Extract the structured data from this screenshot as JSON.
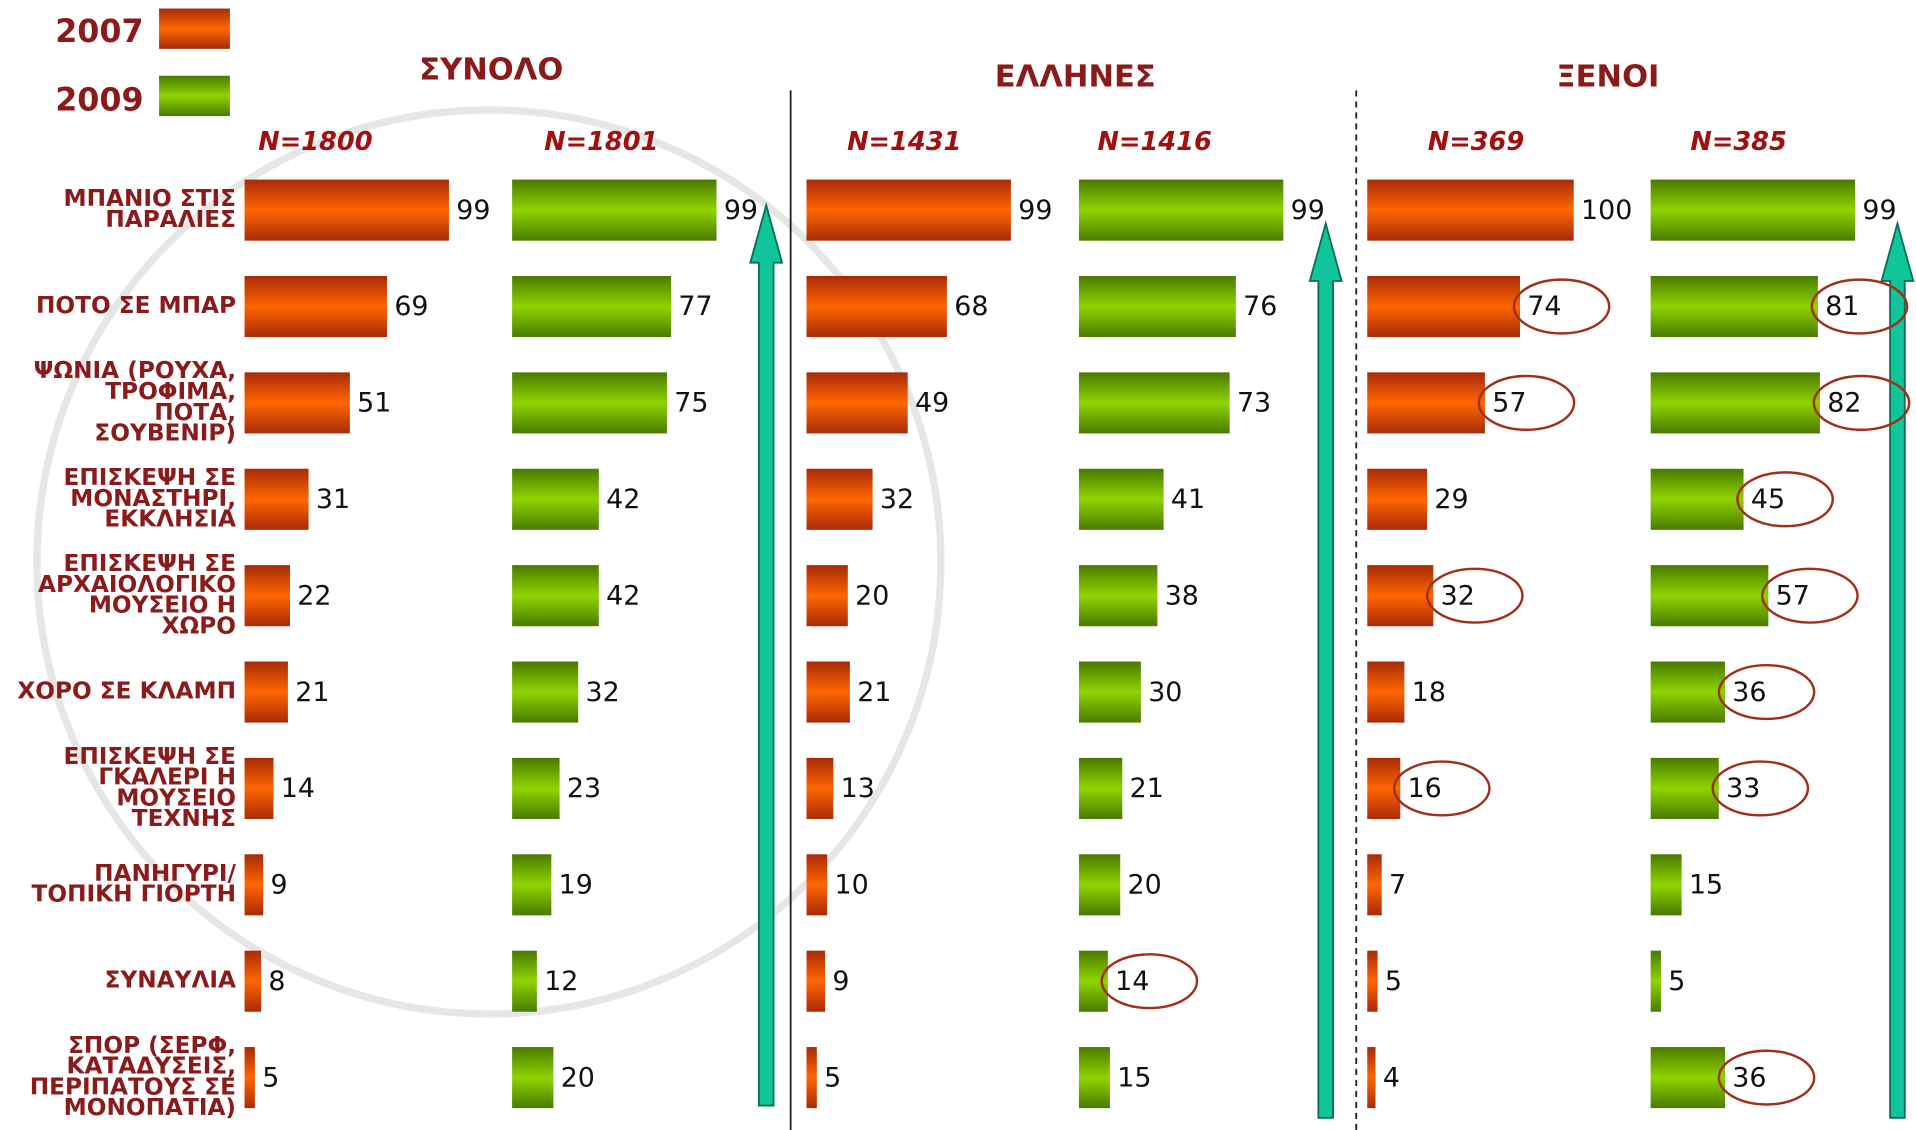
{
  "chart_data": {
    "type": "bar",
    "orientation": "horizontal",
    "series": [
      {
        "name": "2007",
        "color": "#ff6600"
      },
      {
        "name": "2009",
        "color": "#8fd400"
      }
    ],
    "categories": [
      [
        "ΜΠΑΝΙΟ ΣΤΙΣ",
        "ΠΑΡΑΛΙΕΣ"
      ],
      [
        "ΠΟΤΟ ΣΕ ΜΠΑΡ"
      ],
      [
        "ΨΩΝΙΑ (ΡΟΥΧΑ,",
        "ΤΡΟΦΙΜΑ,",
        "ΠΟΤΑ,",
        "ΣΟΥΒΕΝΙΡ)"
      ],
      [
        "ΕΠΙΣΚΕΨΗ ΣΕ",
        "ΜΟΝΑΣΤΗΡΙ,",
        "ΕΚΚΛΗΣΙΑ"
      ],
      [
        "ΕΠΙΣΚΕΨΗ ΣΕ",
        "ΑΡΧΑΙΟΛΟΓΙΚΟ",
        "ΜΟΥΣΕΙΟ Η",
        "ΧΩΡΟ"
      ],
      [
        "ΧΟΡΟ ΣΕ ΚΛΑΜΠ"
      ],
      [
        "ΕΠΙΣΚΕΨΗ ΣΕ",
        "ΓΚΑΛΕΡΙ Η",
        "ΜΟΥΣΕΙΟ",
        "ΤΕΧΝΗΣ"
      ],
      [
        "ΠΑΝΗΓΥΡΙ/",
        "ΤΟΠΙΚΗ ΓΙΟΡΤΗ"
      ],
      [
        "ΣΥΝΑΥΛΙΑ"
      ],
      [
        "ΣΠΟΡ (ΣΕΡΦ,",
        "ΚΑΤΑΔΥΣΕΙΣ,",
        "ΠΕΡΙΠΑΤΟΥΣ ΣΕ",
        "ΜΟΝΟΠΑΤΙΑ)"
      ]
    ],
    "xlim": [
      0,
      100
    ],
    "groups": [
      {
        "title": "ΣΥΝΟΛΟ",
        "panels": [
          {
            "label": "N=1800",
            "series": 0,
            "values": [
              99,
              69,
              51,
              31,
              22,
              21,
              14,
              9,
              8,
              5
            ],
            "highlighted": []
          },
          {
            "label": "N=1801",
            "series": 1,
            "values": [
              99,
              77,
              75,
              42,
              42,
              32,
              23,
              19,
              12,
              20
            ],
            "highlighted": []
          }
        ]
      },
      {
        "title": "ΕΛΛΗΝΕΣ",
        "panels": [
          {
            "label": "N=1431",
            "series": 0,
            "values": [
              99,
              68,
              49,
              32,
              20,
              21,
              13,
              10,
              9,
              5
            ],
            "highlighted": []
          },
          {
            "label": "N=1416",
            "series": 1,
            "values": [
              99,
              76,
              73,
              41,
              38,
              30,
              21,
              20,
              14,
              15
            ],
            "highlighted": [
              8
            ]
          }
        ]
      },
      {
        "title": "ΞΕΝΟΙ",
        "panels": [
          {
            "label": "N=369",
            "series": 0,
            "values": [
              100,
              74,
              57,
              29,
              32,
              18,
              16,
              7,
              5,
              4
            ],
            "highlighted": [
              1,
              2,
              4,
              6
            ]
          },
          {
            "label": "N=385",
            "series": 1,
            "values": [
              99,
              81,
              82,
              45,
              57,
              36,
              33,
              15,
              5,
              36
            ],
            "highlighted": [
              1,
              2,
              3,
              4,
              5,
              6,
              9
            ]
          }
        ]
      }
    ]
  }
}
